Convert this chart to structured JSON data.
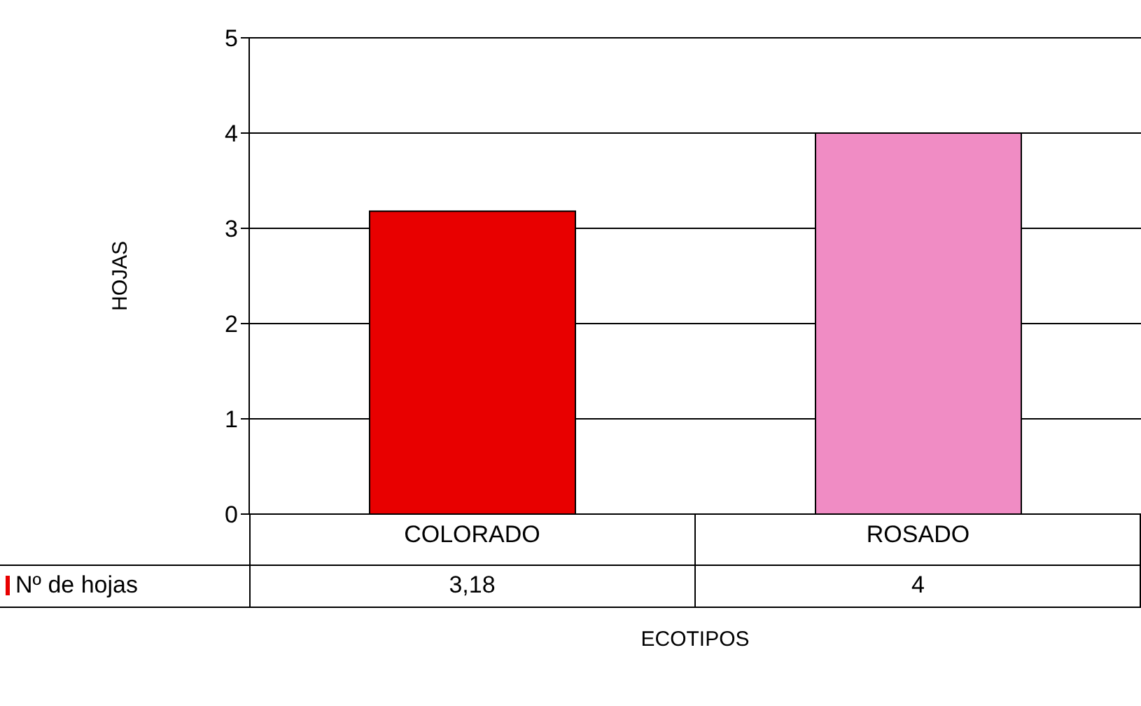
{
  "chart_data": {
    "type": "bar",
    "xlabel": "ECOTIPOS",
    "ylabel": "HOJAS",
    "categories": [
      "COLORADO",
      "ROSADO"
    ],
    "series": [
      {
        "name": "Nº de hojas",
        "colors": [
          "#e80000",
          "#f08cc4"
        ],
        "values": [
          3.18,
          4
        ],
        "value_labels": [
          "3,18",
          "4"
        ]
      }
    ],
    "ylim": [
      0,
      5
    ],
    "yticks": [
      0,
      1,
      2,
      3,
      4,
      5
    ],
    "grid": "y",
    "legend": "bottom left"
  }
}
